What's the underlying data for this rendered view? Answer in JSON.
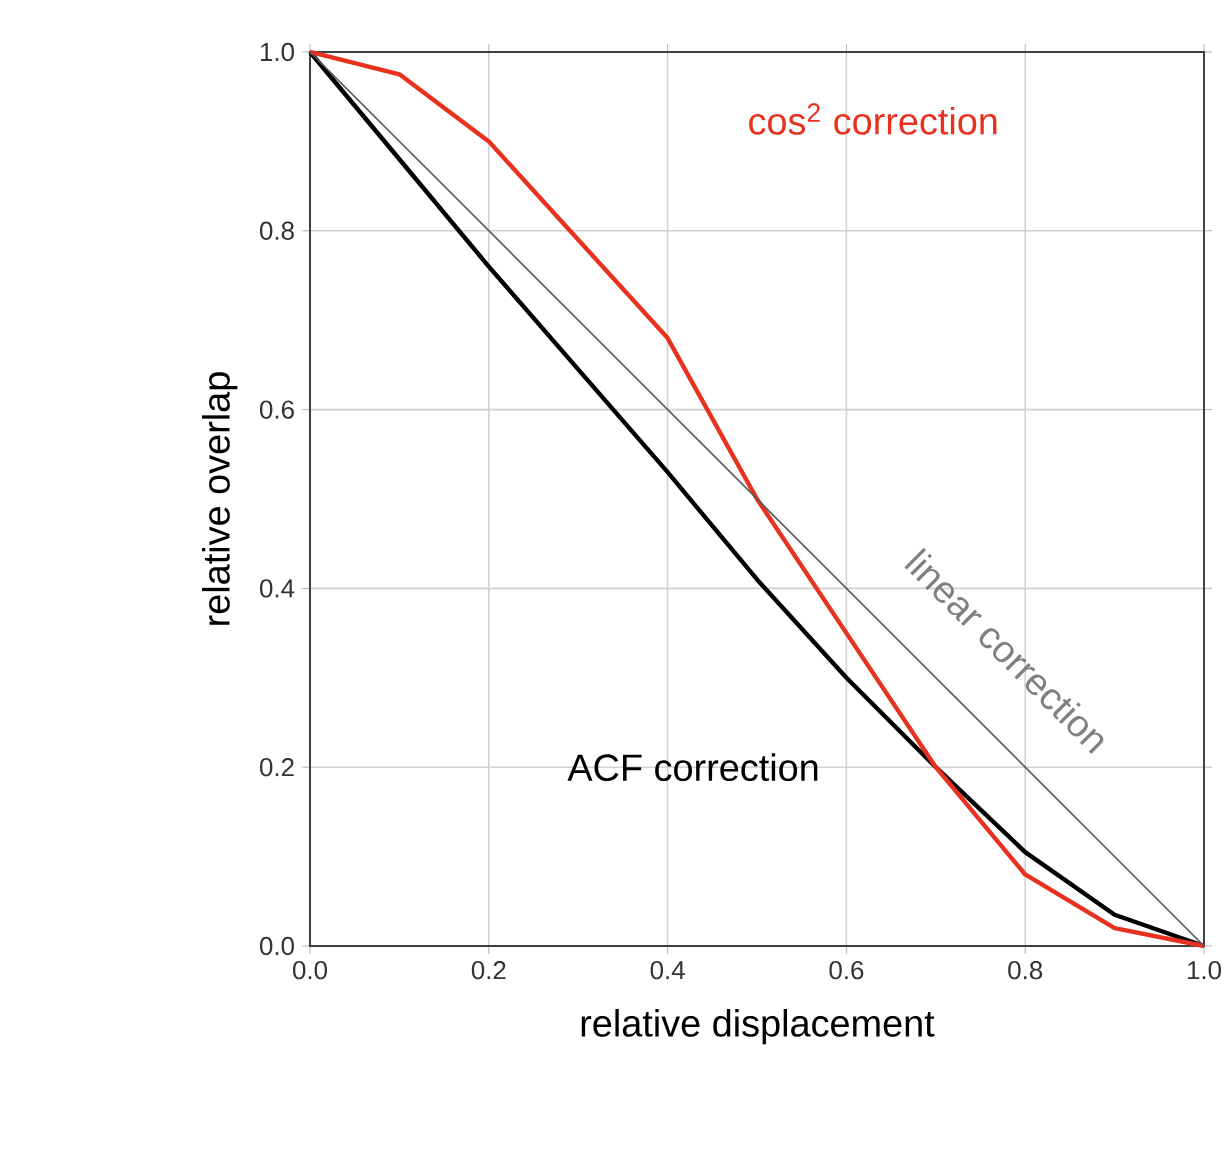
{
  "chart_data": {
    "type": "line",
    "xlabel": "relative displacement",
    "ylabel": "relative overlap",
    "xlim": [
      0,
      1
    ],
    "ylim": [
      0,
      1
    ],
    "xticks": [
      {
        "value": 0,
        "label": "0.0"
      },
      {
        "value": 0.2,
        "label": "0.2"
      },
      {
        "value": 0.4,
        "label": "0.4"
      },
      {
        "value": 0.6,
        "label": "0.6"
      },
      {
        "value": 0.8,
        "label": "0.8"
      },
      {
        "value": 1,
        "label": "1.0"
      }
    ],
    "yticks": [
      {
        "value": 0,
        "label": "0.0"
      },
      {
        "value": 0.2,
        "label": "0.2"
      },
      {
        "value": 0.4,
        "label": "0.4"
      },
      {
        "value": 0.6,
        "label": "0.6"
      },
      {
        "value": 0.8,
        "label": "0.8"
      },
      {
        "value": 1,
        "label": "1.0"
      }
    ],
    "grid": true,
    "legend": false,
    "marker": "none",
    "x": [
      0,
      0.1,
      0.2,
      0.3,
      0.4,
      0.5,
      0.6,
      0.7,
      0.8,
      0.9,
      1
    ],
    "series": [
      {
        "name": "ACF correction",
        "color": "#000000",
        "values": [
          1,
          0.88,
          0.76,
          0.645,
          0.53,
          0.41,
          0.3,
          0.2,
          0.105,
          0.035,
          0
        ]
      },
      {
        "name": "cos$^{2}$ correction",
        "color": "#e8311f",
        "values": [
          1,
          0.975,
          0.9,
          0.79,
          0.68,
          0.5,
          0.35,
          0.2,
          0.08,
          0.02,
          0
        ]
      },
      {
        "name": "linear correction",
        "color": "#555555",
        "x": [
          0,
          1
        ],
        "values": [
          1,
          0
        ]
      }
    ]
  }
}
